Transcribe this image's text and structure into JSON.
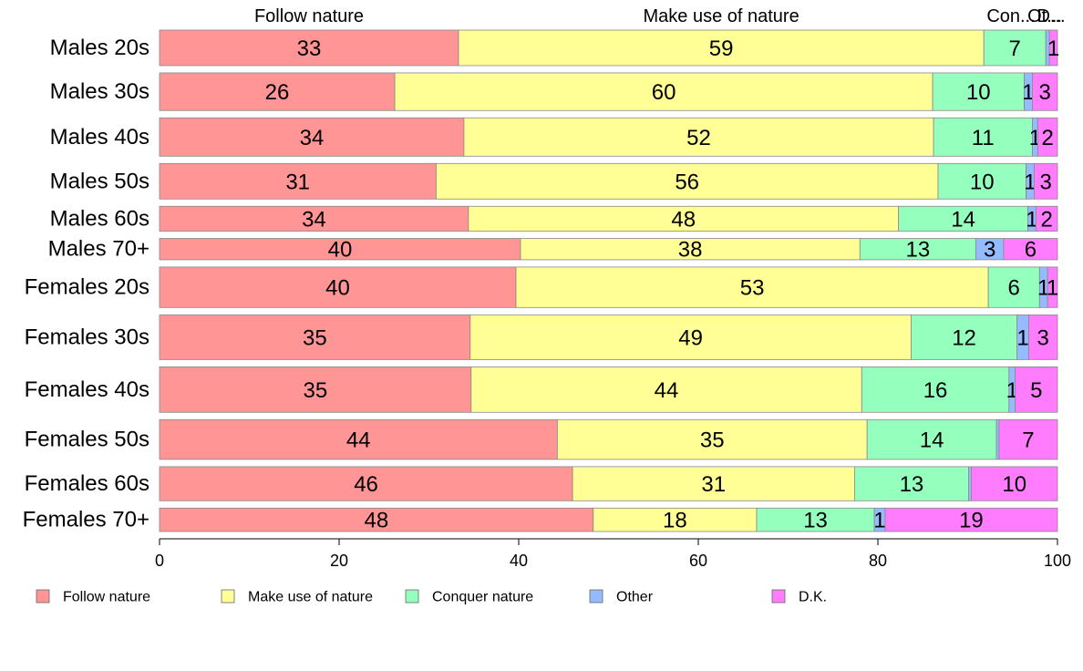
{
  "chart_data": {
    "type": "bar",
    "orientation": "horizontal",
    "stacked": true,
    "categories": [
      "Males 20s",
      "Males 30s",
      "Males 40s",
      "Males 50s",
      "Males 60s",
      "Males 70+",
      "Females 20s",
      "Females 30s",
      "Females 40s",
      "Females 50s",
      "Females 60s",
      "Females 70+"
    ],
    "row_weights": [
      5.0,
      5.3,
      5.4,
      5.0,
      3.5,
      3.0,
      5.7,
      6.3,
      6.4,
      5.6,
      4.8,
      3.3
    ],
    "series": [
      {
        "name": "Follow nature",
        "color": "#ff9595",
        "values": [
          33.3,
          26.2,
          33.9,
          30.8,
          34.4,
          40.2,
          39.7,
          34.6,
          34.7,
          44.3,
          46.0,
          48.3
        ]
      },
      {
        "name": "Make use of nature",
        "color": "#ffff95",
        "values": [
          58.5,
          59.9,
          52.3,
          55.9,
          47.9,
          37.8,
          52.6,
          49.1,
          43.5,
          34.5,
          31.4,
          18.2
        ]
      },
      {
        "name": "Conquer nature",
        "color": "#95ffbe",
        "values": [
          6.9,
          10.2,
          11.0,
          9.8,
          14.4,
          12.9,
          5.7,
          11.8,
          16.4,
          14.4,
          12.7,
          13.1
        ]
      },
      {
        "name": "Other",
        "color": "#95bbff",
        "values": [
          0.4,
          0.9,
          0.6,
          0.9,
          0.9,
          3.1,
          0.9,
          1.3,
          0.7,
          0.3,
          0.3,
          1.2
        ]
      },
      {
        "name": "D.K.",
        "color": "#ff7cff",
        "values": [
          0.9,
          2.8,
          2.2,
          2.6,
          2.4,
          6.0,
          1.1,
          3.2,
          4.7,
          6.5,
          9.6,
          19.2
        ]
      }
    ],
    "top_labels": [
      "Follow nature",
      "Make use of nature",
      "Con...",
      "Ot...",
      "D..."
    ],
    "xlim": [
      0,
      100
    ],
    "x_ticks": [
      "0",
      "20",
      "40",
      "60",
      "80",
      "100"
    ],
    "legend_position": "bottom",
    "grid": false
  }
}
